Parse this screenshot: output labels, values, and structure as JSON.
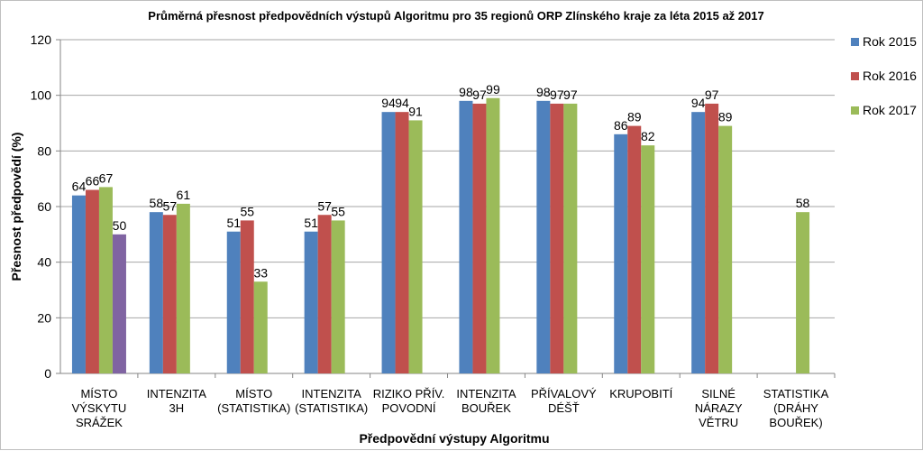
{
  "chart_data": {
    "type": "bar",
    "title": "Průměrná přesnost předpovědních výstupů Algoritmu pro 35 regionů ORP Zlínského kraje za léta 2015 až 2017",
    "xlabel": "Předpovědní výstupy Algoritmu",
    "ylabel": "Přesnost předpovědí (%)",
    "ylim": [
      0,
      120
    ],
    "yticks": [
      0,
      20,
      40,
      60,
      80,
      100,
      120
    ],
    "grid": true,
    "legend_position": "right",
    "categories": [
      [
        "MÍSTO",
        "VÝSKYTU",
        "SRÁŽEK"
      ],
      [
        "INTENZITA",
        "3H"
      ],
      [
        "MÍSTO",
        "(STATISTIKA)"
      ],
      [
        "INTENZITA",
        "(STATISTIKA)"
      ],
      [
        "RIZIKO PŘÍV.",
        "POVODNÍ"
      ],
      [
        "INTENZITA",
        "BOUŘEK"
      ],
      [
        "PŘÍVALOVÝ",
        "DÉŠŤ"
      ],
      [
        "KRUPOBITÍ"
      ],
      [
        "SILNÉ",
        "NÁRAZY",
        "VĚTRU"
      ],
      [
        "STATISTIKA",
        "(DRÁHY",
        "BOUŘEK)"
      ]
    ],
    "series": [
      {
        "name": "Rok 2015",
        "color": "#4F81BD",
        "values": [
          64,
          58,
          51,
          51,
          94,
          98,
          98,
          86,
          94,
          null
        ]
      },
      {
        "name": "Rok 2016",
        "color": "#C0504D",
        "values": [
          66,
          57,
          55,
          57,
          94,
          97,
          97,
          89,
          97,
          null
        ]
      },
      {
        "name": "Rok 2017",
        "color": "#9BBB59",
        "values": [
          67,
          61,
          33,
          55,
          91,
          99,
          97,
          82,
          89,
          58
        ]
      },
      {
        "name": "",
        "color": "#8064A2",
        "values": [
          50,
          null,
          null,
          null,
          null,
          null,
          null,
          null,
          null,
          null
        ]
      }
    ]
  }
}
